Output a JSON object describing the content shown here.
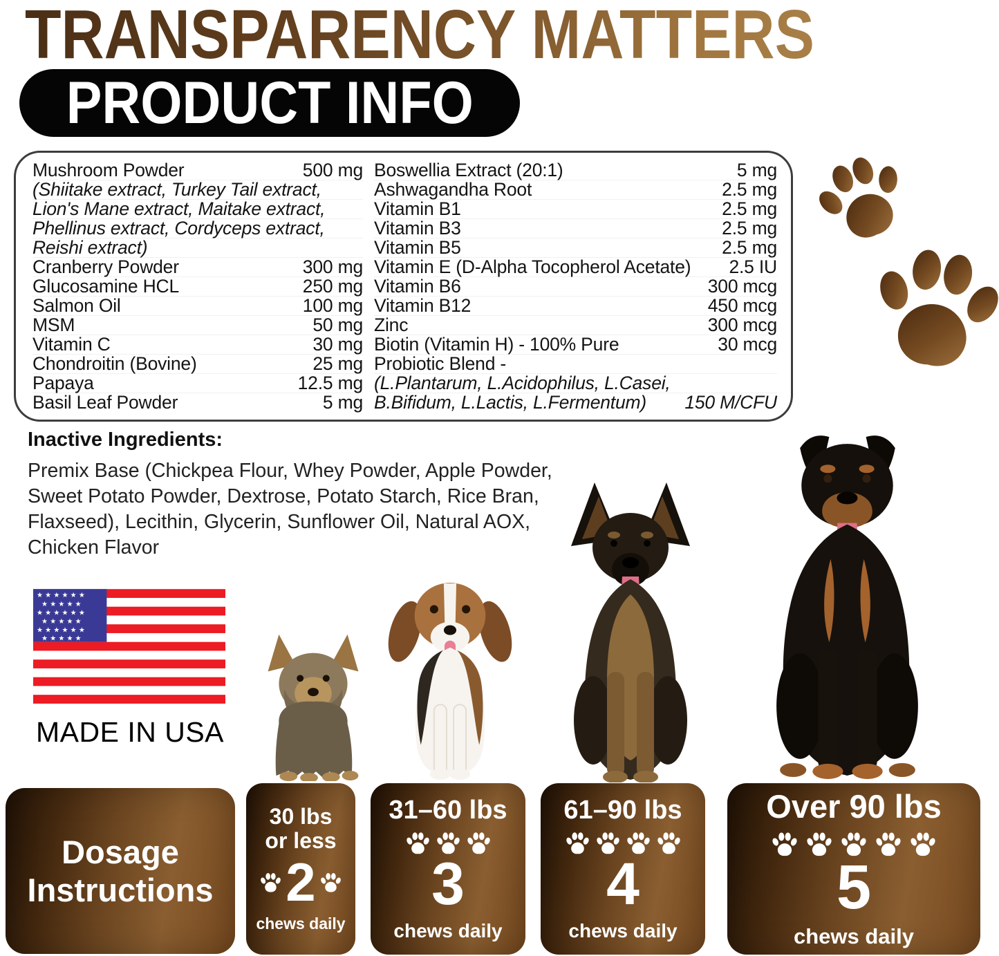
{
  "header": {
    "title": "TRANSPARENCY MATTERS",
    "badge": "PRODUCT INFO"
  },
  "ingredients": {
    "left": [
      {
        "name": "Mushroom Powder",
        "value": "500 mg",
        "italic": false
      },
      {
        "name": "(Shiitake extract, Turkey Tail extract,",
        "value": "",
        "italic": true
      },
      {
        "name": "Lion's Mane extract, Maitake extract,",
        "value": "",
        "italic": true
      },
      {
        "name": "Phellinus extract, Cordyceps extract,",
        "value": "",
        "italic": true
      },
      {
        "name": "Reishi extract)",
        "value": "",
        "italic": true
      },
      {
        "name": "Cranberry Powder",
        "value": "300 mg",
        "italic": false
      },
      {
        "name": "Glucosamine HCL",
        "value": "250 mg",
        "italic": false
      },
      {
        "name": "Salmon Oil",
        "value": "100 mg",
        "italic": false
      },
      {
        "name": "MSM",
        "value": "50 mg",
        "italic": false
      },
      {
        "name": "Vitamin C",
        "value": "30 mg",
        "italic": false
      },
      {
        "name": "Chondroitin (Bovine)",
        "value": "25 mg",
        "italic": false
      },
      {
        "name": "Papaya",
        "value": "12.5 mg",
        "italic": false
      },
      {
        "name": "Basil Leaf Powder",
        "value": "5 mg",
        "italic": false
      }
    ],
    "right": [
      {
        "name": "Boswellia Extract (20:1)",
        "value": "5 mg",
        "italic": false
      },
      {
        "name": "Ashwagandha Root",
        "value": "2.5 mg",
        "italic": false
      },
      {
        "name": "Vitamin B1",
        "value": "2.5 mg",
        "italic": false
      },
      {
        "name": "Vitamin B3",
        "value": "2.5 mg",
        "italic": false
      },
      {
        "name": "Vitamin B5",
        "value": "2.5 mg",
        "italic": false
      },
      {
        "name": "Vitamin E (D-Alpha Tocopherol Acetate)",
        "value": "2.5 IU",
        "italic": false
      },
      {
        "name": "Vitamin B6",
        "value": "300 mcg",
        "italic": false
      },
      {
        "name": "Vitamin B12",
        "value": "450 mcg",
        "italic": false
      },
      {
        "name": "Zinc",
        "value": "300 mcg",
        "italic": false
      },
      {
        "name": "Biotin (Vitamin H) - 100% Pure",
        "value": "30 mcg",
        "italic": false
      },
      {
        "name": "Probiotic Blend -",
        "value": "",
        "italic": false
      },
      {
        "name": "(L.Plantarum,  L.Acidophilus, L.Casei,",
        "value": "",
        "italic": true
      },
      {
        "name": "B.Bifidum, L.Lactis, L.Fermentum)",
        "value": "150 M/CFU",
        "italic": true
      }
    ]
  },
  "inactive": {
    "label": "Inactive Ingredients:",
    "text": "Premix Base (Chickpea Flour, Whey Powder, Apple Powder, Sweet Potato Powder, Dextrose, Potato Starch, Rice Bran, Flaxseed), Lecithin, Glycerin, Sunflower Oil, Natural AOX, Chicken Flavor"
  },
  "made_in": "MADE IN USA",
  "dogs": [
    "yorkshire-terrier",
    "beagle-puppy",
    "german-shepherd",
    "rottweiler"
  ],
  "dosage": {
    "title": "Dosage Instructions",
    "boxes": [
      {
        "weight": "30 lbs or less",
        "count": "2",
        "caption": "chews daily",
        "paws": 2
      },
      {
        "weight": "31–60 lbs",
        "count": "3",
        "caption": "chews daily",
        "paws": 3
      },
      {
        "weight": "61–90 lbs",
        "count": "4",
        "caption": "chews daily",
        "paws": 4
      },
      {
        "weight": "Over 90 lbs",
        "count": "5",
        "caption": "chews daily",
        "paws": 5
      }
    ]
  },
  "colors": {
    "title_brown_dark": "#4b2f16",
    "title_brown_light": "#a87f47",
    "badge_bg": "#000000",
    "card_brown_dark": "#1f1105",
    "card_brown_light": "#8a5e30",
    "paw_brown": "#744a21",
    "flag_red": "#ec1b24",
    "flag_blue": "#3a3a96",
    "text_dark": "#141414"
  }
}
